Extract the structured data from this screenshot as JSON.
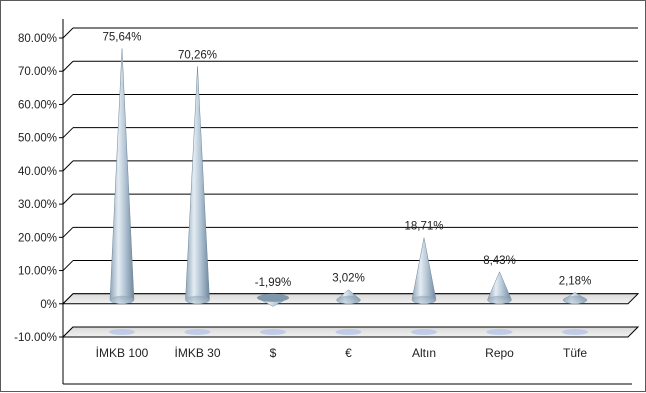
{
  "chart_data": {
    "type": "bar",
    "title": "",
    "xlabel": "",
    "ylabel": "",
    "categories": [
      "İMKB 100",
      "İMKB 30",
      "$",
      "€",
      "Altın",
      "Repo",
      "Tüfe"
    ],
    "values": [
      75.64,
      70.26,
      -1.99,
      3.02,
      18.71,
      8.43,
      2.18
    ],
    "data_labels": [
      "75,64%",
      "70,26%",
      "-1,99%",
      "3,02%",
      "18,71%",
      "8,43%",
      "2,18%"
    ],
    "y_ticks": [
      80,
      70,
      60,
      50,
      40,
      30,
      20,
      10,
      0,
      -10
    ],
    "y_tick_labels": [
      "80.00%",
      "70.00%",
      "60.00%",
      "50.00%",
      "40.00%",
      "30.00%",
      "20.00%",
      "10.00%",
      "0%",
      "-10.00%"
    ],
    "ylim": [
      -10,
      80
    ],
    "grid": true,
    "legend": "none",
    "colors": {
      "cone_light": "#e4ecf3",
      "cone_mid": "#a9bccd",
      "cone_dark": "#6f879c",
      "grid": "#000000",
      "floor": "#c8c8c8"
    }
  }
}
